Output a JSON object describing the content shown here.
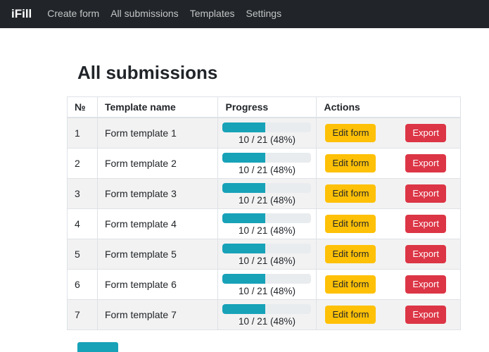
{
  "navbar": {
    "brand": "iFill",
    "items": [
      {
        "label": "Create form"
      },
      {
        "label": "All submissions"
      },
      {
        "label": "Templates"
      },
      {
        "label": "Settings"
      }
    ]
  },
  "page": {
    "title": "All submissions"
  },
  "table": {
    "headers": [
      "№",
      "Template name",
      "Progress",
      "Actions"
    ],
    "rows": [
      {
        "num": "1",
        "name": "Form template 1",
        "progress_pct": 48,
        "progress_label": "10 / 21 (48%)",
        "edit_label": "Edit form",
        "export_label": "Export"
      },
      {
        "num": "2",
        "name": "Form template 2",
        "progress_pct": 48,
        "progress_label": "10 / 21 (48%)",
        "edit_label": "Edit form",
        "export_label": "Export"
      },
      {
        "num": "3",
        "name": "Form template 3",
        "progress_pct": 48,
        "progress_label": "10 / 21 (48%)",
        "edit_label": "Edit form",
        "export_label": "Export"
      },
      {
        "num": "4",
        "name": "Form template 4",
        "progress_pct": 48,
        "progress_label": "10 / 21 (48%)",
        "edit_label": "Edit form",
        "export_label": "Export"
      },
      {
        "num": "5",
        "name": "Form template 5",
        "progress_pct": 48,
        "progress_label": "10 / 21 (48%)",
        "edit_label": "Edit form",
        "export_label": "Export"
      },
      {
        "num": "6",
        "name": "Form template 6",
        "progress_pct": 48,
        "progress_label": "10 / 21 (48%)",
        "edit_label": "Edit form",
        "export_label": "Export"
      },
      {
        "num": "7",
        "name": "Form template 7",
        "progress_pct": 48,
        "progress_label": "10 / 21 (48%)",
        "edit_label": "Edit form",
        "export_label": "Export"
      }
    ]
  },
  "colors": {
    "navbar_bg": "#212529",
    "progress_fill": "#17a2b8",
    "progress_track": "#e9ecef",
    "edit_button_bg": "#ffc107",
    "export_button_bg": "#dc3545"
  }
}
